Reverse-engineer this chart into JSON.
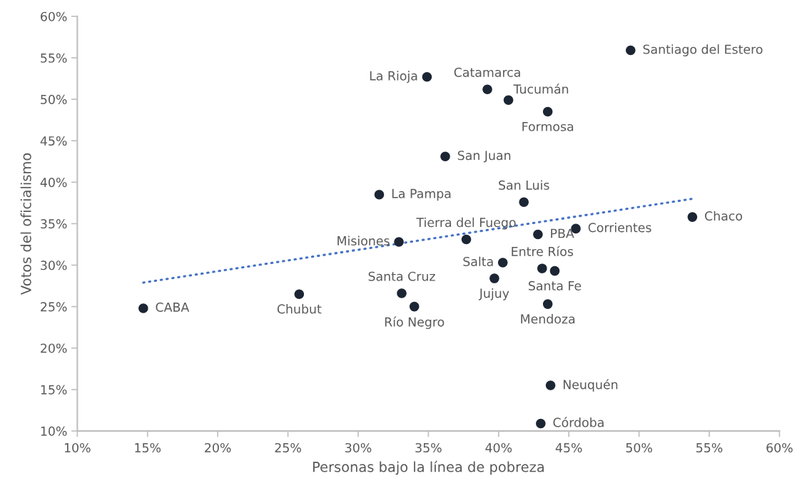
{
  "chart_data": {
    "type": "scatter",
    "xlabel": "Personas bajo la línea de pobreza",
    "ylabel": "Votos del oficialismo",
    "xlim": [
      10,
      60
    ],
    "ylim": [
      10,
      60
    ],
    "xticks": [
      {
        "value": 10,
        "label": "10%"
      },
      {
        "value": 15,
        "label": "15%"
      },
      {
        "value": 20,
        "label": "20%"
      },
      {
        "value": 25,
        "label": "25%"
      },
      {
        "value": 30,
        "label": "30%"
      },
      {
        "value": 35,
        "label": "35%"
      },
      {
        "value": 40,
        "label": "40%"
      },
      {
        "value": 45,
        "label": "45%"
      },
      {
        "value": 50,
        "label": "50%"
      },
      {
        "value": 55,
        "label": "55%"
      },
      {
        "value": 60,
        "label": "60%"
      }
    ],
    "yticks": [
      {
        "value": 10,
        "label": "10%"
      },
      {
        "value": 15,
        "label": "15%"
      },
      {
        "value": 20,
        "label": "20%"
      },
      {
        "value": 25,
        "label": "25%"
      },
      {
        "value": 30,
        "label": "30%"
      },
      {
        "value": 35,
        "label": "35%"
      },
      {
        "value": 40,
        "label": "40%"
      },
      {
        "value": 45,
        "label": "45%"
      },
      {
        "value": 50,
        "label": "50%"
      },
      {
        "value": 55,
        "label": "55%"
      },
      {
        "value": 60,
        "label": "60%"
      }
    ],
    "grid": false,
    "series": [
      {
        "marker": "circle",
        "color": "#1c2533",
        "x": [
          14.7,
          25.8,
          33.1,
          34.0,
          32.9,
          37.7,
          40.3,
          39.7,
          42.8,
          45.5,
          43.1,
          44.0,
          43.5,
          43.7,
          43.0,
          34.9,
          39.2,
          40.7,
          43.5,
          36.2,
          31.5,
          41.8,
          49.4,
          53.8
        ],
        "values": [
          24.8,
          26.5,
          26.6,
          25.0,
          32.8,
          33.1,
          30.3,
          28.4,
          33.7,
          34.4,
          29.6,
          29.3,
          25.3,
          15.5,
          10.9,
          52.7,
          51.2,
          49.9,
          48.5,
          43.1,
          38.5,
          37.6,
          55.9,
          35.8
        ]
      },
      {
        "type": "line",
        "color": "#4472c4",
        "line_style": "dotted",
        "x": [
          14.7,
          53.8
        ],
        "values": [
          27.9,
          38.0
        ]
      }
    ],
    "annotations": [
      {
        "text": "CABA",
        "x": 14.7,
        "y": 24.8
      },
      {
        "text": "Chubut",
        "x": 25.8,
        "y": 26.5
      },
      {
        "text": "Santa Cruz",
        "x": 33.1,
        "y": 26.6
      },
      {
        "text": "Río Negro",
        "x": 34.0,
        "y": 25.0
      },
      {
        "text": "Misiones",
        "x": 32.9,
        "y": 32.8
      },
      {
        "text": "Tierra del Fuego",
        "x": 37.7,
        "y": 33.1
      },
      {
        "text": "Salta",
        "x": 40.3,
        "y": 30.3
      },
      {
        "text": "Jujuy",
        "x": 39.7,
        "y": 28.4
      },
      {
        "text": "PBA",
        "x": 42.8,
        "y": 33.7
      },
      {
        "text": "Corrientes",
        "x": 45.5,
        "y": 34.4
      },
      {
        "text": "Entre Ríos",
        "x": 43.1,
        "y": 29.6
      },
      {
        "text": "Santa Fe",
        "x": 44.0,
        "y": 29.3
      },
      {
        "text": "Mendoza",
        "x": 43.5,
        "y": 25.3
      },
      {
        "text": "Neuquén",
        "x": 43.7,
        "y": 15.5
      },
      {
        "text": "Córdoba",
        "x": 43.0,
        "y": 10.9
      },
      {
        "text": "La Rioja",
        "x": 34.9,
        "y": 52.7
      },
      {
        "text": "Catamarca",
        "x": 39.2,
        "y": 51.2
      },
      {
        "text": "Tucumán",
        "x": 40.7,
        "y": 49.9
      },
      {
        "text": "Formosa",
        "x": 43.5,
        "y": 48.5
      },
      {
        "text": "San Juan",
        "x": 36.2,
        "y": 43.1
      },
      {
        "text": "La Pampa",
        "x": 31.5,
        "y": 38.5
      },
      {
        "text": "San Luis",
        "x": 41.8,
        "y": 37.6
      },
      {
        "text": "Santiago del Estero",
        "x": 49.4,
        "y": 55.9
      },
      {
        "text": "Chaco",
        "x": 53.8,
        "y": 35.8
      }
    ]
  }
}
